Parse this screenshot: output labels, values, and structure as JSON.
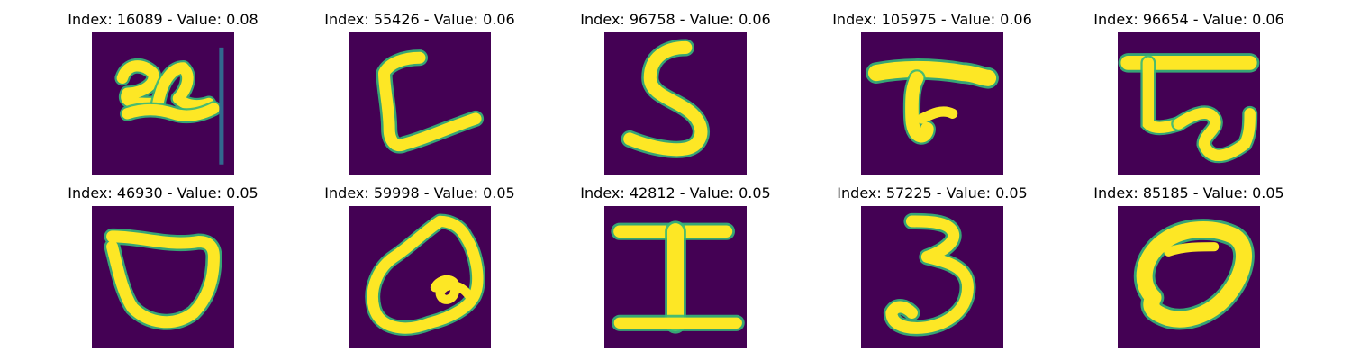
{
  "colors": {
    "background": "#440154",
    "low": "#31688e",
    "mid": "#35b779",
    "high": "#fde725"
  },
  "items": [
    {
      "title": "Index: 16089 - Value: 0.08",
      "index": 16089,
      "value": 0.08,
      "glyph": "handwritten '24'-like squiggle with vertical line",
      "cmap": "viridis"
    },
    {
      "title": "Index: 55426 - Value: 0.06",
      "index": 55426,
      "value": 0.06,
      "glyph": "handwritten 'L'-like stroke",
      "cmap": "viridis"
    },
    {
      "title": "Index: 96758 - Value: 0.06",
      "index": 96758,
      "value": 0.06,
      "glyph": "handwritten 'S'",
      "cmap": "viridis"
    },
    {
      "title": "Index: 105975 - Value: 0.06",
      "index": 105975,
      "value": 0.06,
      "glyph": "handwritten 'T'-like stroke",
      "cmap": "viridis"
    },
    {
      "title": "Index: 96654 - Value: 0.06",
      "index": 96654,
      "value": 0.06,
      "glyph": "handwritten boxed squiggle",
      "cmap": "viridis"
    },
    {
      "title": "Index: 46930 - Value: 0.05",
      "index": 46930,
      "value": 0.05,
      "glyph": "handwritten 'D' / cup shape",
      "cmap": "viridis"
    },
    {
      "title": "Index: 59998 - Value: 0.05",
      "index": 59998,
      "value": 0.05,
      "glyph": "handwritten loop shape",
      "cmap": "viridis"
    },
    {
      "title": "Index: 42812 - Value: 0.05",
      "index": 42812,
      "value": 0.05,
      "glyph": "handwritten 'I'",
      "cmap": "viridis"
    },
    {
      "title": "Index: 57225 - Value: 0.05",
      "index": 57225,
      "value": 0.05,
      "glyph": "handwritten '3'",
      "cmap": "viridis"
    },
    {
      "title": "Index: 85185 - Value: 0.05",
      "index": 85185,
      "value": 0.05,
      "glyph": "handwritten 'O' with inner loop",
      "cmap": "viridis"
    }
  ]
}
